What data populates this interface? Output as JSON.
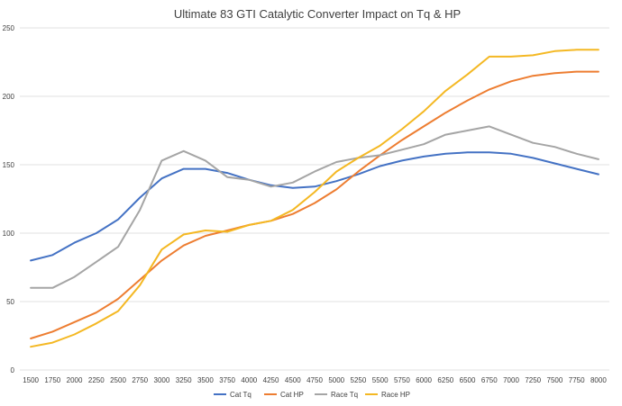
{
  "chart_data": {
    "type": "line",
    "title": "Ultimate 83 GTI Catalytic Converter Impact on Tq & HP",
    "xlabel": "",
    "ylabel": "",
    "ylim": [
      0,
      250
    ],
    "yticks": [
      0,
      50,
      100,
      150,
      200,
      250
    ],
    "grid": true,
    "legend_position": "bottom",
    "x": [
      1500,
      1750,
      2000,
      2250,
      2500,
      2750,
      3000,
      3250,
      3500,
      3750,
      4000,
      4250,
      4500,
      4750,
      5000,
      5250,
      5500,
      5750,
      6000,
      6250,
      6500,
      6750,
      7000,
      7250,
      7500,
      7750,
      8000
    ],
    "series": [
      {
        "name": "Cat Tq",
        "color": "#4472c4",
        "values": [
          80,
          84,
          93,
          100,
          110,
          126,
          140,
          147,
          147,
          144,
          139,
          135,
          133,
          134,
          138,
          143,
          149,
          153,
          156,
          158,
          159,
          159,
          158,
          155,
          151,
          147,
          143
        ]
      },
      {
        "name": "Cat HP",
        "color": "#ed7d31",
        "values": [
          23,
          28,
          35,
          42,
          52,
          66,
          80,
          91,
          98,
          102,
          106,
          109,
          114,
          122,
          132,
          145,
          157,
          168,
          178,
          188,
          197,
          205,
          211,
          215,
          217,
          218,
          218
        ]
      },
      {
        "name": "Race Tq",
        "color": "#a5a5a5",
        "values": [
          60,
          60,
          68,
          79,
          90,
          117,
          153,
          160,
          153,
          141,
          139,
          134,
          137,
          145,
          152,
          155,
          157,
          161,
          165,
          172,
          175,
          178,
          172,
          166,
          163,
          158,
          154
        ]
      },
      {
        "name": "Race HP",
        "color": "#f4b823",
        "values": [
          17,
          20,
          26,
          34,
          43,
          62,
          88,
          99,
          102,
          101,
          106,
          109,
          117,
          130,
          145,
          155,
          164,
          176,
          189,
          204,
          216,
          229,
          229,
          230,
          233,
          234,
          234
        ]
      }
    ]
  }
}
